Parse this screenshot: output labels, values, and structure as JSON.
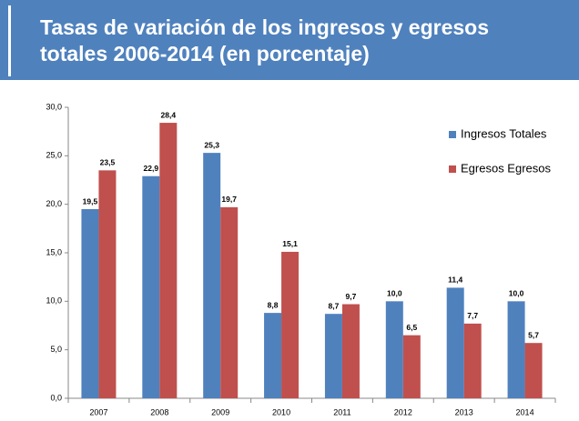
{
  "chart_data": {
    "type": "bar",
    "title": "Tasas de variación de los ingresos y egresos totales 2006-2014 (en porcentaje)",
    "categories": [
      "2007",
      "2008",
      "2009",
      "2010",
      "2011",
      "2012",
      "2013",
      "2014"
    ],
    "series": [
      {
        "name": "Ingresos Totales",
        "color": "#4f81bd",
        "values": [
          19.5,
          22.9,
          25.3,
          8.8,
          8.7,
          10.0,
          11.4,
          10.0
        ],
        "value_labels": [
          "19,5",
          "22,9",
          "25,3",
          "8,8",
          "8,7",
          "10,0",
          "11,4",
          "10,0"
        ]
      },
      {
        "name": "Egresos Egresos",
        "color": "#c0504d",
        "values": [
          23.5,
          28.4,
          19.7,
          15.1,
          9.7,
          6.5,
          7.7,
          5.7
        ],
        "value_labels": [
          "23,5",
          "28,4",
          "19,7",
          "15,1",
          "9,7",
          "6,5",
          "7,7",
          "5,7"
        ]
      }
    ],
    "ylim": [
      0,
      30
    ],
    "yticks": [
      {
        "value": 0,
        "label": "0,0"
      },
      {
        "value": 5,
        "label": "5,0"
      },
      {
        "value": 10,
        "label": "10,0"
      },
      {
        "value": 15,
        "label": "15,0"
      },
      {
        "value": 20,
        "label": "20,0"
      },
      {
        "value": 25,
        "label": "25,0"
      },
      {
        "value": 30,
        "label": "30,0"
      }
    ],
    "grid": false,
    "legend": "right"
  }
}
